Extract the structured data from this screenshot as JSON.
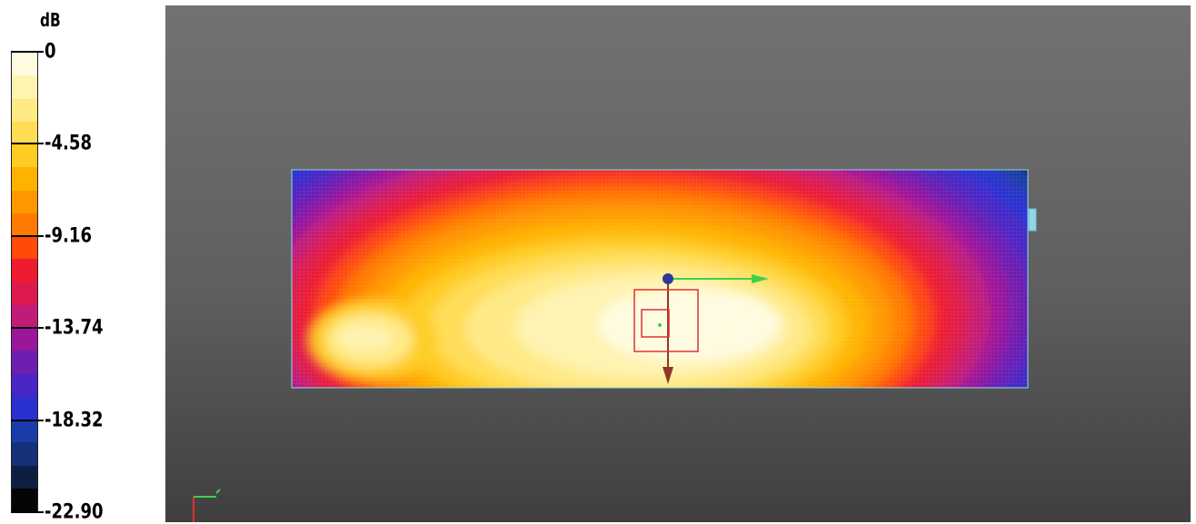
{
  "legend": {
    "unit": "dB",
    "ticks": [
      "0",
      "-4.58",
      "-9.16",
      "-13.74",
      "-18.32",
      "-22.90"
    ],
    "tick_values": [
      0,
      -4.58,
      -9.16,
      -13.74,
      -18.32,
      -22.9
    ],
    "colors": [
      "#fffbe0",
      "#fff3b0",
      "#ffe985",
      "#ffdd55",
      "#ffcc22",
      "#ffb300",
      "#ff9800",
      "#ff7a00",
      "#ff4a0a",
      "#ee1c2e",
      "#dd1a4e",
      "#c21a78",
      "#9a169b",
      "#6e1fb0",
      "#4a25c5",
      "#2b30d0",
      "#1a3ca8",
      "#143078",
      "#0e1e40",
      "#050505"
    ]
  },
  "viewport": {
    "background_top": "#727272",
    "background_bottom": "#3f3f3f",
    "heatmap": {
      "type": "heatmap",
      "value_range_db": [
        -22.9,
        0
      ],
      "frame_color": "#8fd8e8"
    },
    "gizmo": {
      "x_axis_color": "#3cd14a",
      "y_axis_color": "#8b3a2a",
      "origin_color": "#2a3a9a",
      "marker_color": "#e03030"
    },
    "axis_triad": {
      "x_color": "#3cd14a",
      "y_color": "#e03030"
    }
  }
}
